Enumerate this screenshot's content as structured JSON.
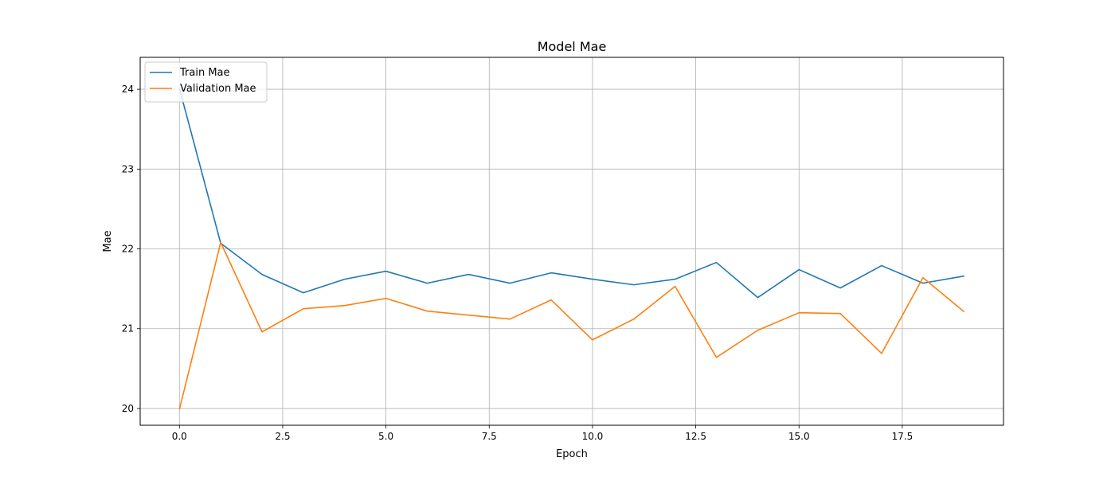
{
  "chart_data": {
    "type": "line",
    "title": "Model Mae",
    "xlabel": "Epoch",
    "ylabel": "Mae",
    "xlim": [
      -0.95,
      19.95
    ],
    "ylim": [
      19.79,
      24.4
    ],
    "xticks": [
      0.0,
      2.5,
      5.0,
      7.5,
      10.0,
      12.5,
      15.0,
      17.5
    ],
    "xtick_labels": [
      "0.0",
      "2.5",
      "5.0",
      "7.5",
      "10.0",
      "12.5",
      "15.0",
      "17.5"
    ],
    "yticks": [
      20,
      21,
      22,
      23,
      24
    ],
    "ytick_labels": [
      "20",
      "21",
      "22",
      "23",
      "24"
    ],
    "grid": true,
    "legend_position": "upper left",
    "x": [
      0,
      1,
      2,
      3,
      4,
      5,
      6,
      7,
      8,
      9,
      10,
      11,
      12,
      13,
      14,
      15,
      16,
      17,
      18,
      19
    ],
    "series": [
      {
        "name": "Train Mae",
        "color": "#1f77b4",
        "values": [
          24.01,
          22.07,
          21.68,
          21.45,
          21.62,
          21.72,
          21.57,
          21.68,
          21.57,
          21.7,
          21.62,
          21.55,
          21.62,
          21.83,
          21.39,
          21.74,
          21.51,
          21.79,
          21.57,
          21.66
        ]
      },
      {
        "name": "Validation Mae",
        "color": "#ff7f0e",
        "values": [
          19.99,
          22.08,
          20.96,
          21.25,
          21.29,
          21.38,
          21.22,
          21.17,
          21.12,
          21.36,
          20.86,
          21.12,
          21.53,
          20.64,
          20.98,
          21.2,
          21.19,
          20.69,
          21.64,
          21.21
        ]
      }
    ]
  }
}
